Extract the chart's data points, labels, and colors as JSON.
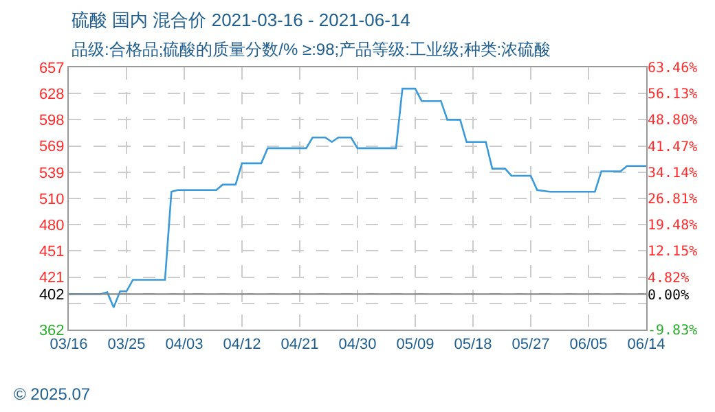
{
  "chart_data": {
    "type": "line",
    "title": "硫酸 国内 混合价 2021-03-16 - 2021-06-14",
    "subtitle": "品级:合格品;硫酸的质量分数/% ≥:98;产品等级:工业级;种类:浓硫酸",
    "annotations": [
      "© 2025.07"
    ],
    "x": [
      "2021-03-16",
      "2021-03-21",
      "2021-03-22",
      "2021-03-23",
      "2021-03-24",
      "2021-03-25",
      "2021-03-26",
      "2021-03-31",
      "2021-04-01",
      "2021-04-02",
      "2021-04-08",
      "2021-04-09",
      "2021-04-11",
      "2021-04-12",
      "2021-04-15",
      "2021-04-16",
      "2021-04-22",
      "2021-04-23",
      "2021-04-25",
      "2021-04-26",
      "2021-04-27",
      "2021-04-29",
      "2021-04-30",
      "2021-05-06",
      "2021-05-07",
      "2021-05-09",
      "2021-05-10",
      "2021-05-13",
      "2021-05-14",
      "2021-05-16",
      "2021-05-17",
      "2021-05-20",
      "2021-05-21",
      "2021-05-23",
      "2021-05-24",
      "2021-05-27",
      "2021-05-28",
      "2021-05-30",
      "2021-06-06",
      "2021-06-07",
      "2021-06-10",
      "2021-06-11",
      "2021-06-14"
    ],
    "series": [
      {
        "color": "#3a9ad9",
        "values": [
          402,
          402,
          404,
          387,
          405,
          405,
          418,
          418,
          517,
          519,
          519,
          525,
          525,
          549,
          549,
          566,
          566,
          578,
          578,
          573,
          578,
          578,
          566,
          566,
          633,
          633,
          619,
          619,
          598,
          598,
          573,
          573,
          543,
          543,
          535,
          535,
          519,
          517,
          517,
          540,
          540,
          546,
          546
        ]
      }
    ],
    "xlim": [
      "2021-03-16",
      "2021-06-14"
    ],
    "xticks": [
      {
        "value": "2021-03-16",
        "label": "03/16"
      },
      {
        "value": "2021-03-25",
        "label": "03/25"
      },
      {
        "value": "2021-04-03",
        "label": "04/03"
      },
      {
        "value": "2021-04-12",
        "label": "04/12"
      },
      {
        "value": "2021-04-21",
        "label": "04/21"
      },
      {
        "value": "2021-04-30",
        "label": "04/30"
      },
      {
        "value": "2021-05-09",
        "label": "05/09"
      },
      {
        "value": "2021-05-18",
        "label": "05/18"
      },
      {
        "value": "2021-05-27",
        "label": "05/27"
      },
      {
        "value": "2021-06-05",
        "label": "06/05"
      },
      {
        "value": "2021-06-14",
        "label": "06/14"
      }
    ],
    "ylim": [
      362,
      657
    ],
    "yticks": [
      657,
      {
        "value": 627.5,
        "label": "628"
      },
      598,
      {
        "value": 568.5,
        "label": "569"
      },
      539,
      {
        "value": 509.5,
        "label": "510"
      },
      480,
      {
        "value": 450.5,
        "label": "451"
      },
      421,
      402,
      {
        "value": 391.5,
        "label": null
      },
      362
    ],
    "y2lim": [
      -9.83,
      63.46
    ],
    "y2ticks": [
      {
        "value": 63.46,
        "label": "63.46%"
      },
      {
        "value": 56.13,
        "label": "56.13%"
      },
      {
        "value": 48.8,
        "label": "48.80%"
      },
      {
        "value": 41.47,
        "label": "41.47%"
      },
      {
        "value": 34.14,
        "label": "34.14%"
      },
      {
        "value": 26.81,
        "label": "26.81%"
      },
      {
        "value": 19.48,
        "label": "19.48%"
      },
      {
        "value": 12.15,
        "label": "12.15%"
      },
      {
        "value": 4.82,
        "label": "4.82%"
      },
      {
        "value": 0,
        "label": "0.00%"
      },
      {
        "value": -9.83,
        "label": "-9.83%"
      }
    ],
    "ref_lines": [
      {
        "axis": "y",
        "value": 402,
        "color": "#808080",
        "line_style": "solid"
      }
    ],
    "grid": true,
    "marker": "none",
    "line_style": "solid"
  }
}
